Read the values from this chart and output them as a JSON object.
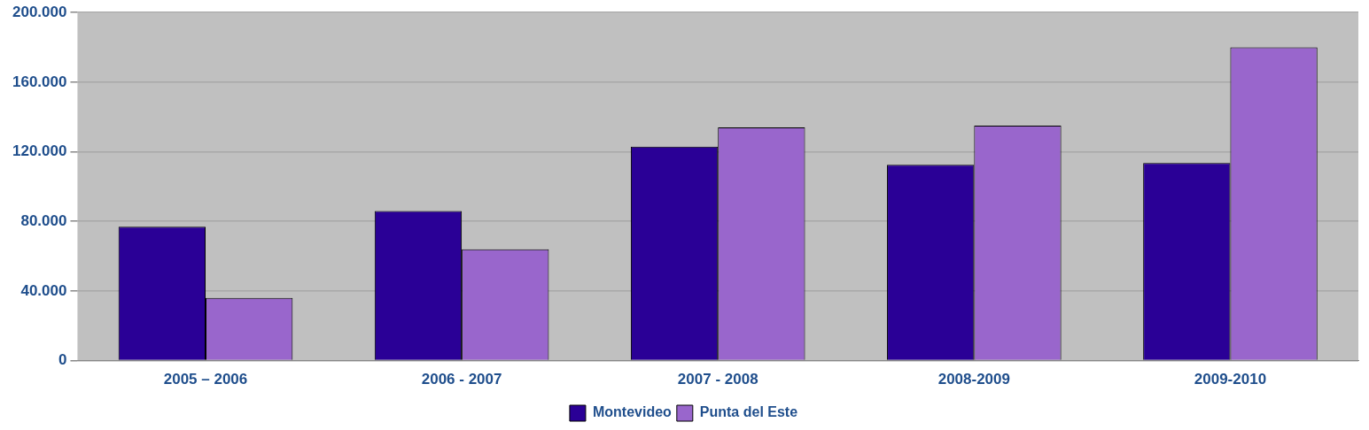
{
  "chart_data": {
    "type": "bar",
    "categories": [
      "2005 – 2006",
      "2006 - 2007",
      "2007 - 2008",
      "2008-2009",
      "2009-2010"
    ],
    "series": [
      {
        "name": "Montevideo",
        "color": "#2a0096",
        "values": [
          77000,
          86000,
          123000,
          112500,
          113500
        ]
      },
      {
        "name": "Punta del Este",
        "color": "#9966cc",
        "values": [
          36000,
          64000,
          134000,
          135000,
          180000
        ]
      }
    ],
    "ylim": [
      0,
      200000
    ],
    "yticks": [
      {
        "value": 0,
        "label": "0"
      },
      {
        "value": 40000,
        "label": "40.000"
      },
      {
        "value": 80000,
        "label": "80.000"
      },
      {
        "value": 120000,
        "label": "120.000"
      },
      {
        "value": 160000,
        "label": "160.000"
      },
      {
        "value": 200000,
        "label": "200.000"
      }
    ],
    "grid": "y",
    "legend": "bottom"
  }
}
